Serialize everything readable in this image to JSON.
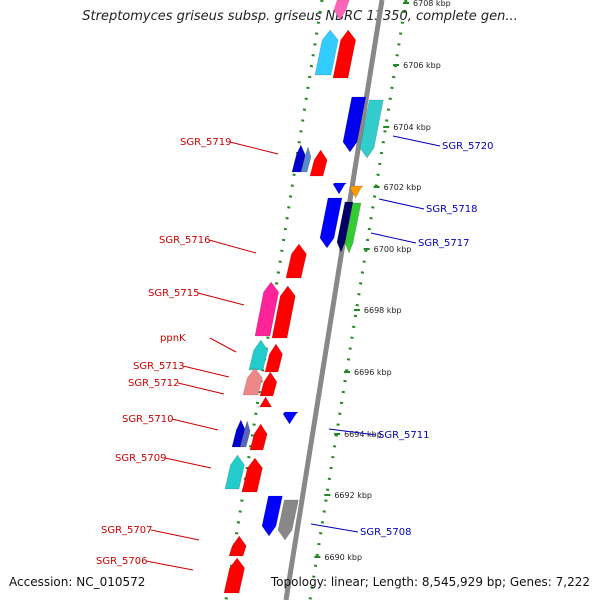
{
  "title": "Streptomyces griseus subsp. griseus NBRC 13350, complete gen...",
  "accession": "Accession: NC_010572",
  "summary": "Topology: linear; Length: 8,545,929 bp; Genes: 7,222",
  "colors": {
    "backbone": "#888888",
    "left_label": "#cc0000",
    "right_label": "#0000bb",
    "tick": "#228822"
  },
  "kbp_marks": [
    {
      "label": "6708 kbp",
      "kbp": 6708
    },
    {
      "label": "6706 kbp",
      "kbp": 6706
    },
    {
      "label": "6704 kbp",
      "kbp": 6704
    },
    {
      "label": "6702 kbp",
      "kbp": 6702
    },
    {
      "label": "6700 kbp",
      "kbp": 6700
    },
    {
      "label": "6698 kbp",
      "kbp": 6698
    },
    {
      "label": "6696 kbp",
      "kbp": 6696
    },
    {
      "label": "6694 kbp",
      "kbp": 6694
    },
    {
      "label": "6692 kbp",
      "kbp": 6692
    },
    {
      "label": "6690 kbp",
      "kbp": 6690
    }
  ],
  "left_labels": [
    "SGR_5719",
    "SGR_5716",
    "SGR_5715",
    "ppnK",
    "SGR_5713",
    "SGR_5712",
    "SGR_5710",
    "SGR_5709",
    "SGR_5707",
    "SGR_5706"
  ],
  "right_labels": [
    "SGR_5720",
    "SGR_5718",
    "SGR_5717",
    "SGR_5711",
    "SGR_5708"
  ]
}
